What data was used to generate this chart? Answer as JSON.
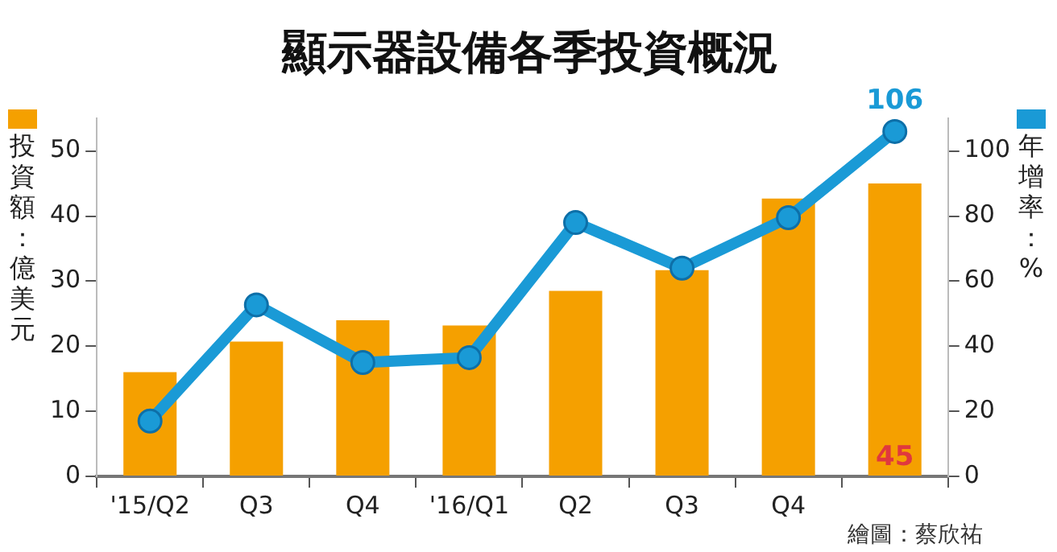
{
  "chart_data": {
    "type": "bar",
    "title": "顯示器設備各季投資概況",
    "categories": [
      "'15/Q2",
      "Q3",
      "Q4",
      "'16/Q1",
      "Q2",
      "Q3",
      "Q4",
      null
    ],
    "series": [
      {
        "color": "#f5a000",
        "values": [
          16,
          20.7,
          24,
          23.2,
          28.5,
          31.7,
          42.7,
          45
        ],
        "value_labels": [
          null,
          null,
          null,
          null,
          null,
          null,
          null,
          "45"
        ]
      },
      {
        "type": "line",
        "axis": "y2",
        "color": "#1a9ad6",
        "values": [
          17,
          52.7,
          35,
          36.5,
          78,
          64,
          79.5,
          106
        ],
        "value_labels": [
          null,
          null,
          null,
          null,
          null,
          null,
          null,
          "106"
        ]
      }
    ],
    "ylabel": "投資額：億美元",
    "y2label": "年增率：%",
    "ylim": [
      0,
      55
    ],
    "yticks": [
      0,
      10,
      20,
      30,
      40,
      50
    ],
    "y2lim": [
      0,
      110
    ],
    "y2ticks": [
      0,
      20,
      40,
      60,
      80,
      100
    ],
    "grid": false,
    "legend": false,
    "marker": "circle",
    "line_style": "solid",
    "annotations": [
      "繪圖：蔡欣祐"
    ]
  }
}
